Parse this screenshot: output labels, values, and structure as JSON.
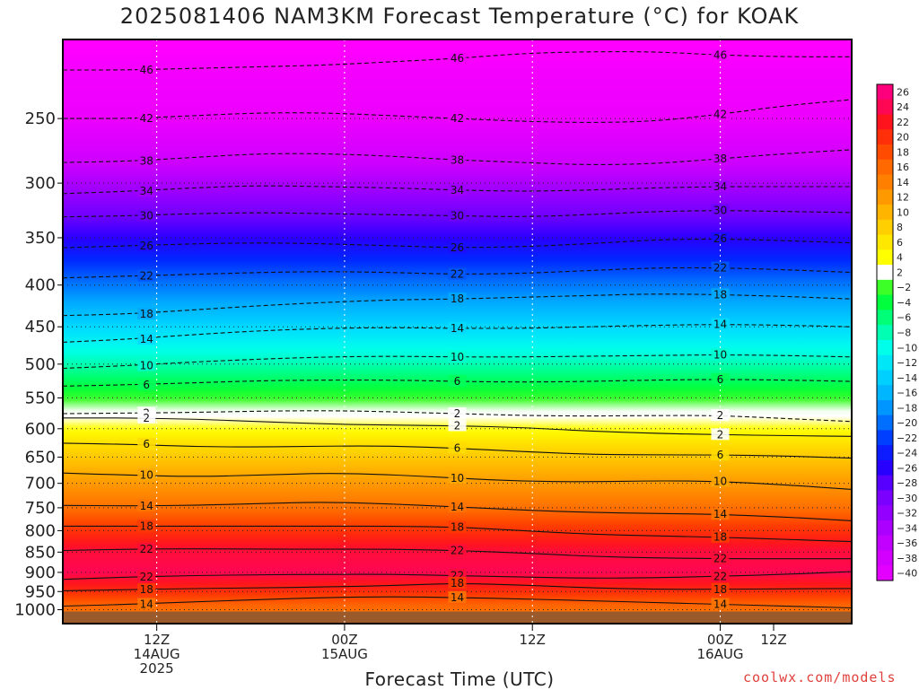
{
  "chart_data": {
    "type": "heatmap",
    "title": "2025081406 NAM3KM Forecast Temperature (°C) for KOAK",
    "xlabel": "Forecast Time (UTC)",
    "ylabel": "",
    "credit": "coolwx.com/models",
    "y_scale": "log-pressure",
    "ylim": [
      1040,
      200
    ],
    "y_ticks": [
      250,
      300,
      350,
      400,
      450,
      500,
      550,
      600,
      650,
      700,
      750,
      800,
      850,
      900,
      950,
      1000
    ],
    "x_unit": "forecast hours from 2025081406",
    "xlim": [
      0,
      45
    ],
    "x_ticks": [
      {
        "hour": 6,
        "lines": [
          "12Z",
          "14AUG",
          "2025"
        ]
      },
      {
        "hour": 18,
        "lines": [
          "00Z",
          "15AUG"
        ]
      },
      {
        "hour": 30,
        "lines": [
          "12Z"
        ]
      },
      {
        "hour": 42,
        "lines": [
          "00Z",
          "16AUG"
        ]
      },
      {
        "hour": 54,
        "lines": [
          "12Z"
        ]
      }
    ],
    "grid": true,
    "colorbar": {
      "placement": "right",
      "levels": [
        26,
        24,
        22,
        20,
        18,
        16,
        14,
        12,
        10,
        8,
        6,
        4,
        2,
        -2,
        -4,
        -6,
        -8,
        -10,
        -12,
        -14,
        -16,
        -18,
        -20,
        -22,
        -24,
        -26,
        -28,
        -30,
        -32,
        -34,
        -36,
        -38,
        -40
      ],
      "labels": [
        "26",
        "24",
        "22",
        "20",
        "18",
        "16",
        "14",
        "12",
        "10",
        "8",
        "6",
        "4",
        "2",
        "−2",
        "−4",
        "−6",
        "−8",
        "−10",
        "−12",
        "−14",
        "−16",
        "−18",
        "−20",
        "−22",
        "−24",
        "−26",
        "−28",
        "−30",
        "−32",
        "−34",
        "−36",
        "−38",
        "−40"
      ]
    },
    "isotherms": [
      {
        "value": 46,
        "label": "46",
        "pressure": [
          218,
          218,
          217,
          216,
          215,
          213,
          211,
          208,
          207,
          207,
          209,
          210,
          210
        ]
      },
      {
        "value": 42,
        "label": "42",
        "pressure": [
          250,
          250,
          248,
          246,
          246,
          248,
          250,
          252,
          253,
          252,
          247,
          241,
          237
        ]
      },
      {
        "value": 38,
        "label": "38",
        "pressure": [
          283,
          282,
          279,
          276,
          276,
          278,
          281,
          283,
          285,
          284,
          280,
          276,
          273
        ]
      },
      {
        "value": 34,
        "label": "34",
        "pressure": [
          309,
          307,
          304,
          302,
          303,
          304,
          306,
          307,
          306,
          304,
          303,
          303,
          303
        ]
      },
      {
        "value": 30,
        "label": "30",
        "pressure": [
          330,
          329,
          327,
          326,
          327,
          328,
          329,
          330,
          328,
          325,
          324,
          325,
          326
        ]
      },
      {
        "value": 26,
        "label": "26",
        "pressure": [
          360,
          358,
          356,
          355,
          356,
          358,
          360,
          359,
          356,
          352,
          351,
          353,
          355
        ]
      },
      {
        "value": 22,
        "label": "22",
        "pressure": [
          392,
          390,
          388,
          386,
          385,
          386,
          388,
          387,
          384,
          381,
          381,
          383,
          386
        ]
      },
      {
        "value": 18,
        "label": "18",
        "pressure": [
          436,
          434,
          429,
          424,
          420,
          417,
          416,
          414,
          412,
          410,
          411,
          413,
          416
        ]
      },
      {
        "value": 14,
        "label": "14",
        "pressure": [
          470,
          466,
          460,
          455,
          452,
          451,
          452,
          452,
          450,
          448,
          447,
          448,
          450
        ]
      },
      {
        "value": 10,
        "label": "10",
        "pressure": [
          506,
          502,
          497,
          493,
          490,
          489,
          490,
          490,
          489,
          488,
          487,
          488,
          490
        ]
      },
      {
        "value": 6,
        "label": "6",
        "pressure": [
          532,
          530,
          527,
          524,
          523,
          523,
          525,
          526,
          525,
          523,
          522,
          523,
          525
        ]
      },
      {
        "value": 2,
        "label": "2",
        "pressure": [
          575,
          574,
          573,
          571,
          570,
          572,
          575,
          578,
          579,
          578,
          578,
          583,
          588
        ]
      },
      {
        "value": 2,
        "label": "2",
        "pressure": [
          582,
          582,
          584,
          588,
          592,
          594,
          595,
          598,
          604,
          608,
          610,
          612,
          613
        ]
      },
      {
        "value": 6,
        "label": "6",
        "pressure": [
          625,
          627,
          631,
          632,
          630,
          630,
          634,
          640,
          645,
          646,
          646,
          648,
          652
        ]
      },
      {
        "value": 10,
        "label": "10",
        "pressure": [
          680,
          684,
          687,
          684,
          680,
          683,
          690,
          696,
          697,
          695,
          696,
          703,
          712
        ]
      },
      {
        "value": 14,
        "label": "14",
        "pressure": [
          745,
          746,
          745,
          741,
          738,
          742,
          748,
          755,
          760,
          762,
          764,
          770,
          778
        ]
      },
      {
        "value": 18,
        "label": "18",
        "pressure": [
          790,
          790,
          790,
          790,
          790,
          790,
          792,
          800,
          808,
          812,
          815,
          820,
          825
        ]
      },
      {
        "value": 22,
        "label": "22",
        "pressure": [
          846,
          843,
          842,
          843,
          843,
          843,
          846,
          852,
          860,
          864,
          866,
          866,
          866
        ]
      },
      {
        "value": 22,
        "label": "22",
        "pressure": [
          918,
          912,
          908,
          906,
          905,
          905,
          908,
          912,
          915,
          914,
          910,
          905,
          898
        ]
      },
      {
        "value": 18,
        "label": "18",
        "pressure": [
          948,
          945,
          942,
          940,
          938,
          934,
          928,
          933,
          940,
          944,
          944,
          943,
          942
        ]
      },
      {
        "value": 14,
        "label": "14",
        "pressure": [
          990,
          985,
          978,
          972,
          966,
          964,
          966,
          970,
          975,
          980,
          985,
          990,
          995
        ]
      }
    ]
  }
}
